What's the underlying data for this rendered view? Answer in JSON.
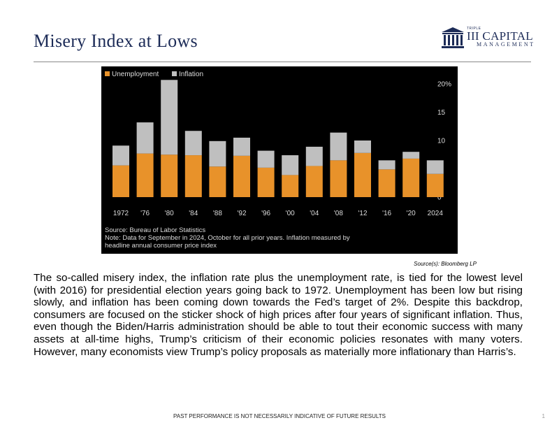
{
  "slide": {
    "title": "Misery Index at Lows",
    "logo": {
      "small": "TRIPLE",
      "main": "III CAPITAL",
      "sub": "MANAGEMENT"
    },
    "source_cite": "Source(s): Bloomberg LP",
    "body": "The so-called misery index, the inflation rate plus the unemployment rate, is tied for the lowest level (with 2016) for presidential election years going back to 1972. Unemployment has been low but rising slowly, and inflation has been coming down towards the Fed’s target of 2%. Despite this backdrop, consumers are focused on the sticker shock of high prices after four years of significant inflation. Thus, even though the Biden/Harris administration should be able to tout their economic success with many assets at all-time highs, Trump’s criticism of their economic policies resonates with many voters. However, many economists view Trump’s policy proposals as materially more inflationary than Harris’s.",
    "footer": "PAST PERFORMANCE IS NOT NECESSARILY INDICATIVE OF FUTURE RESULTS",
    "page_number": "1"
  },
  "chart_data": {
    "type": "bar",
    "stacked": true,
    "categories": [
      "1972",
      "'76",
      "'80",
      "'84",
      "'88",
      "'92",
      "'96",
      "'00",
      "'04",
      "'08",
      "'12",
      "'16",
      "'20",
      "2024"
    ],
    "series": [
      {
        "name": "Unemployment",
        "color": "#e8922a",
        "values": [
          5.6,
          7.7,
          7.5,
          7.4,
          5.4,
          7.3,
          5.2,
          3.9,
          5.5,
          6.5,
          7.8,
          4.9,
          6.8,
          4.1
        ]
      },
      {
        "name": "Inflation",
        "color": "#bfbfbf",
        "values": [
          3.5,
          5.5,
          13.2,
          4.3,
          4.5,
          3.2,
          3.0,
          3.5,
          3.4,
          4.9,
          2.2,
          1.6,
          1.2,
          2.4
        ]
      }
    ],
    "y_ticks": [
      "20%",
      "15",
      "10",
      "5",
      "0"
    ],
    "ylim": [
      0,
      20
    ],
    "legend_position": "top-left",
    "notes": [
      "Source: Bureau of Labor Statistics",
      "Note: Data for September in 2024, October for all prior years. Inflation measured by",
      "headline annual consumer price index"
    ],
    "colors": {
      "background": "#000000",
      "text": "#dcdcdc"
    }
  }
}
